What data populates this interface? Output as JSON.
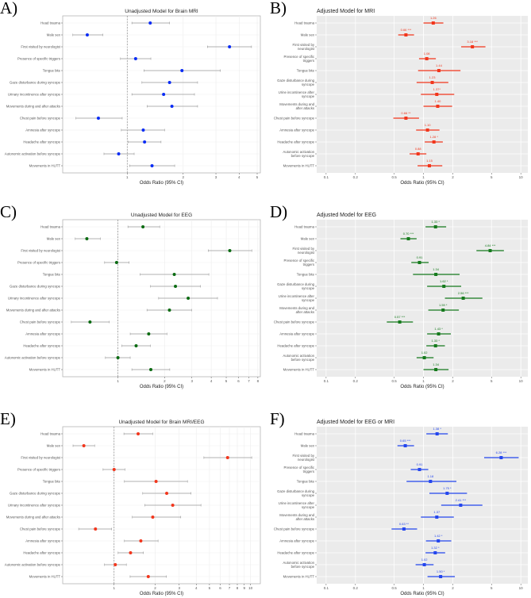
{
  "chart_data": [
    {
      "panel": "A)",
      "type": "forest",
      "title": "Unadjusted Model for Brain MRI",
      "xlabel": "Odds Ratio (95% CI)",
      "style": "unadjusted",
      "color": "#0a2cf5",
      "xscale": "log",
      "xlim": [
        0.45,
        5.2
      ],
      "ticks": [
        1,
        2,
        3,
        4,
        5
      ],
      "reference_line": 1,
      "categories": [
        "Head trauma",
        "Male sex",
        "First visited by neurologist",
        "Presence of specific triggers",
        "Tongue bite",
        "Gaze disturbance during syncope",
        "Urinary incontinence after syncope",
        "Movements during and after attacks",
        "Chest pain before syncope",
        "Amnesia after syncope",
        "Headache after syncope",
        "Autonomic activation before syncope",
        "Movements in HUTT"
      ],
      "or": [
        1.33,
        0.61,
        3.55,
        1.11,
        1.97,
        1.69,
        1.57,
        1.74,
        0.7,
        1.22,
        1.24,
        0.9,
        1.36
      ],
      "lo": [
        1.06,
        0.51,
        2.7,
        0.92,
        1.23,
        1.2,
        1.06,
        1.28,
        0.53,
        0.93,
        1.01,
        0.75,
        1.03
      ],
      "hi": [
        1.69,
        0.74,
        4.66,
        1.34,
        3.17,
        2.39,
        2.3,
        2.39,
        0.94,
        1.59,
        1.52,
        1.09,
        1.8
      ]
    },
    {
      "panel": "B)",
      "type": "forest",
      "title": "Adjusted Model for MRI",
      "xlabel": "Odds Ratio (95% CI)",
      "style": "adjusted",
      "color": "#f2361c",
      "xscale": "log",
      "xlim": [
        0.08,
        11.8
      ],
      "ticks": [
        0.1,
        0.2,
        0.5,
        1,
        2,
        5,
        10
      ],
      "categories": [
        "Head trauma",
        "Male sex",
        "First visited by\nneurologist",
        "Presence of specific\ntriggers",
        "Tongue bite",
        "Gaze disturbance during\nsyncope",
        "Urine incontinence after\nsyncope",
        "Movements during and\nafter attacks",
        "Chest pain before syncope",
        "Amnesia after syncope",
        "Headache after syncope",
        "Autonomic activation\nbefore syncope",
        "Movements in HUTT"
      ],
      "labels": [
        "1.26",
        "0.66 ***",
        "3.18 ***",
        "1.08",
        "1.44",
        "1.23",
        "1.37*",
        "1.40",
        "0.66 **",
        "1.10",
        "1.28 *",
        "0.88",
        "1.15"
      ],
      "or": [
        1.26,
        0.66,
        3.18,
        1.08,
        1.44,
        1.23,
        1.37,
        1.4,
        0.66,
        1.1,
        1.28,
        0.88,
        1.15
      ],
      "lo": [
        1.0,
        0.55,
        2.44,
        0.9,
        0.88,
        0.85,
        0.94,
        1.0,
        0.49,
        0.84,
        1.03,
        0.72,
        0.87
      ],
      "hi": [
        1.6,
        0.8,
        4.33,
        1.34,
        2.4,
        1.8,
        2.07,
        1.97,
        0.9,
        1.46,
        1.58,
        1.07,
        1.56
      ]
    },
    {
      "panel": "C)",
      "type": "forest",
      "title": "Unadjusted Model for EEG",
      "xlabel": "Odds Ratio (95% CI)",
      "style": "unadjusted",
      "color": "#0b6b12",
      "xscale": "log",
      "xlim": [
        0.44,
        8.3
      ],
      "ticks": [
        1,
        2,
        3,
        4,
        5,
        6,
        7,
        8
      ],
      "reference_line": 1,
      "categories": [
        "Head trauma",
        "Male sex",
        "First visited by neurologist",
        "Presence of specific triggers",
        "Tongue bite",
        "Gaze disturbance during syncope",
        "Urinary incontinence after syncope",
        "Movements during and after attacks",
        "Chest pain before syncope",
        "Amnesia after syncope",
        "Headache after syncope",
        "Autonomic activation before syncope",
        "Movements in HUTT"
      ],
      "or": [
        1.45,
        0.63,
        5.27,
        0.98,
        2.31,
        2.35,
        2.84,
        2.15,
        0.66,
        1.58,
        1.31,
        1.0,
        1.63
      ],
      "lo": [
        1.16,
        0.53,
        3.83,
        0.82,
        1.39,
        1.62,
        1.83,
        1.54,
        0.5,
        1.2,
        1.06,
        0.83,
        1.23
      ],
      "hi": [
        1.86,
        0.77,
        7.31,
        1.18,
        3.86,
        3.41,
        4.39,
        2.99,
        0.88,
        2.07,
        1.62,
        1.2,
        2.16
      ]
    },
    {
      "panel": "D)",
      "type": "forest",
      "title": "Adjusted Model for EEG",
      "xlabel": "Odds Ratio (95% CI)",
      "style": "adjusted",
      "color": "#157a1c",
      "xscale": "log",
      "xlim": [
        0.08,
        11.8
      ],
      "ticks": [
        0.1,
        0.2,
        0.5,
        1,
        2,
        5,
        10
      ],
      "categories": [
        "Head trauma",
        "Male sex",
        "First visited by\nneurologist",
        "Presence of specific\ntriggers",
        "Tongue bite",
        "Gaze disturbance during\nsyncope",
        "Urine incontinence after\nsyncope",
        "Movements during and\nafter attacks",
        "Chest pain before syncope",
        "Amnesia after syncope",
        "Headache after syncope",
        "Autonomic activation\nbefore syncope",
        "Movements in HUTT"
      ],
      "labels": [
        "1.33 *",
        "0.70 ***",
        "4.84 ***",
        "0.91",
        "1.34",
        "1.62 *",
        "2.56 ***",
        "1.59 *",
        "0.57 ***",
        "1.43 *",
        "1.33 *",
        "1.02",
        "1.34"
      ],
      "or": [
        1.33,
        0.7,
        4.84,
        0.91,
        1.34,
        1.62,
        2.56,
        1.59,
        0.57,
        1.43,
        1.33,
        1.02,
        1.34
      ],
      "lo": [
        1.05,
        0.58,
        3.5,
        0.75,
        0.78,
        1.09,
        1.66,
        1.12,
        0.42,
        1.09,
        1.07,
        0.85,
        1.0
      ],
      "hi": [
        1.71,
        0.85,
        6.7,
        1.13,
        2.35,
        2.44,
        4.03,
        2.31,
        0.78,
        1.91,
        1.66,
        1.27,
        1.81
      ]
    },
    {
      "panel": "E)",
      "type": "forest",
      "title": "Unadjusted Model for Brain MRI/EEG",
      "xlabel": "Odds Ratio (95% CI)",
      "style": "unadjusted",
      "color": "#f2361c",
      "xscale": "log",
      "xlim": [
        0.42,
        11.8
      ],
      "ticks": [
        1,
        2,
        3,
        4,
        5,
        6,
        7,
        8,
        9,
        10
      ],
      "reference_line": 1,
      "categories": [
        "Head trauma",
        "Male sex",
        "First visited by neurologist",
        "Presence of specific triggers",
        "Tongue bite",
        "Gaze disturbance during syncope",
        "Urinary incontinence after syncope",
        "Movements during and after attacks",
        "Chest pain before syncope",
        "Amnesia after syncope",
        "Headache after syncope",
        "Autonomic activation before syncope",
        "Movements in HUTT"
      ],
      "or": [
        1.5,
        0.6,
        6.79,
        1.0,
        2.03,
        2.43,
        2.69,
        1.92,
        0.73,
        1.57,
        1.32,
        1.02,
        1.78
      ],
      "lo": [
        1.18,
        0.5,
        4.55,
        0.83,
        1.19,
        1.62,
        1.68,
        1.36,
        0.55,
        1.19,
        1.07,
        0.85,
        1.31
      ],
      "hi": [
        1.92,
        0.72,
        10.2,
        1.2,
        3.45,
        3.66,
        4.33,
        3.08,
        0.96,
        2.1,
        1.64,
        1.23,
        2.42
      ]
    },
    {
      "panel": "F)",
      "type": "forest",
      "title": "Adjusted Model for EEG or MRI",
      "xlabel": "Odds Ratio (95% CI)",
      "style": "adjusted",
      "color": "#2446ee",
      "xscale": "log",
      "xlim": [
        0.08,
        11.8
      ],
      "ticks": [
        0.1,
        0.2,
        0.5,
        1,
        2,
        5,
        10
      ],
      "categories": [
        "Head trauma",
        "Male sex",
        "First visited by\nneurologist",
        "Presence of specific\ntriggers",
        "Tongue bite",
        "Gaze disturbance during\nsyncope",
        "Urine incontinence after\nsyncope",
        "Movements during and\nafter attacks",
        "Chest pain before syncope",
        "Amnesia after syncope",
        "Headache after syncope",
        "Autonomic activation\nbefore syncope",
        "Movements in HUTT"
      ],
      "labels": [
        "1.38 *",
        "0.65 ***",
        "6.28 ***",
        "0.91",
        "1.18",
        "1.75 *",
        "2.41 ***",
        "1.37",
        "0.63 **",
        "1.42 *",
        "1.32 *",
        "1.02",
        "1.50 *"
      ],
      "or": [
        1.38,
        0.65,
        6.28,
        0.91,
        1.18,
        1.75,
        2.41,
        1.37,
        0.63,
        1.42,
        1.32,
        1.02,
        1.5
      ],
      "lo": [
        1.07,
        0.54,
        4.2,
        0.74,
        0.67,
        1.15,
        1.52,
        0.94,
        0.47,
        1.06,
        1.05,
        0.83,
        1.1
      ],
      "hi": [
        1.78,
        0.8,
        9.5,
        1.12,
        2.18,
        2.8,
        4.03,
        2.05,
        0.86,
        1.93,
        1.67,
        1.27,
        2.1
      ]
    }
  ]
}
